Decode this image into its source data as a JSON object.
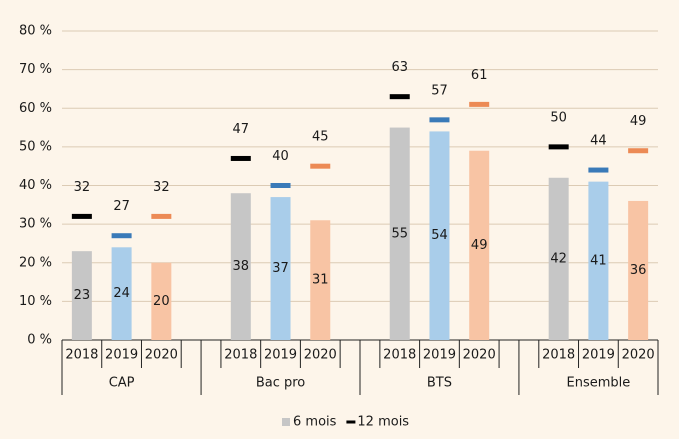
{
  "chart_data": {
    "type": "bar",
    "groups": [
      "CAP",
      "Bac pro",
      "BTS",
      "Ensemble"
    ],
    "subcategories": [
      "2018",
      "2019",
      "2020"
    ],
    "ylim": [
      0,
      80
    ],
    "yticks": [
      {
        "value": 0,
        "label": "0 %"
      },
      {
        "value": 10,
        "label": "10 %"
      },
      {
        "value": 20,
        "label": "20 %"
      },
      {
        "value": 30,
        "label": "30 %"
      },
      {
        "value": 40,
        "label": "40 %"
      },
      {
        "value": 50,
        "label": "50 %"
      },
      {
        "value": 60,
        "label": "60 %"
      },
      {
        "value": 70,
        "label": "70 %"
      },
      {
        "value": 80,
        "label": "80 %"
      }
    ],
    "grid": true,
    "legend": "bottom",
    "series": [
      {
        "name": "6 mois",
        "type": "bar",
        "color": "#c6c6c6",
        "colors": [
          "#c6c6c6",
          "#a9cdea",
          "#f8c4a4"
        ],
        "values": [
          [
            23,
            24,
            20
          ],
          [
            38,
            37,
            31
          ],
          [
            55,
            54,
            49
          ],
          [
            42,
            41,
            36
          ]
        ]
      },
      {
        "name": "12 mois",
        "type": "marker",
        "color": "#000000",
        "colors": [
          "#000000",
          "#3a7ab8",
          "#ec8a55"
        ],
        "values": [
          [
            32,
            27,
            32
          ],
          [
            47,
            40,
            45
          ],
          [
            63,
            57,
            61
          ],
          [
            50,
            44,
            49
          ]
        ]
      }
    ]
  }
}
